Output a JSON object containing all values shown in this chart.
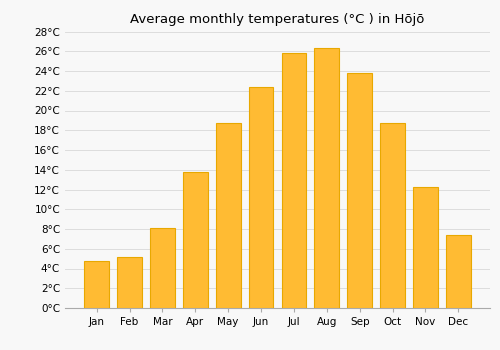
{
  "title": "Average monthly temperatures (°C ) in Hōjō",
  "months": [
    "Jan",
    "Feb",
    "Mar",
    "Apr",
    "May",
    "Jun",
    "Jul",
    "Aug",
    "Sep",
    "Oct",
    "Nov",
    "Dec"
  ],
  "values": [
    4.8,
    5.2,
    8.1,
    13.8,
    18.7,
    22.4,
    25.8,
    26.3,
    23.8,
    18.7,
    12.3,
    7.4
  ],
  "bar_color": "#FFBB33",
  "bar_edge_color": "#E8A800",
  "background_color": "#F8F8F8",
  "grid_color": "#DDDDDD",
  "ylim": [
    0,
    28
  ],
  "ytick_step": 2,
  "title_fontsize": 9.5,
  "tick_fontsize": 7.5,
  "figsize": [
    5.0,
    3.5
  ],
  "dpi": 100
}
